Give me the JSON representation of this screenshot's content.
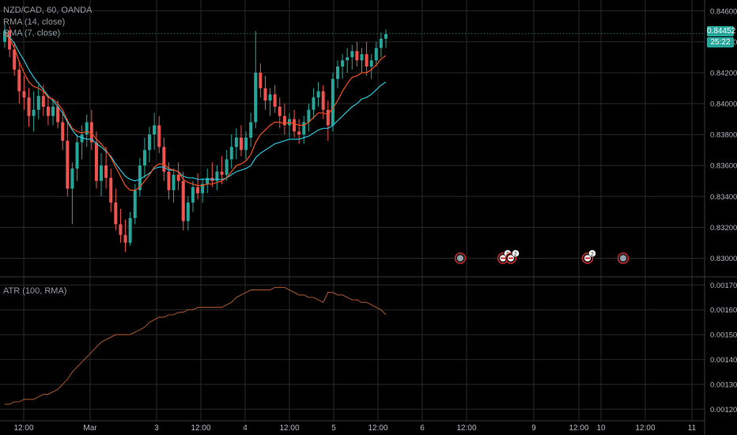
{
  "header": {
    "symbol_line": "NZD/CAD, 60, OANDA",
    "ma_line_1": "RMA (14, close)",
    "ma_line_2": "RMA (7, close)"
  },
  "indicator": {
    "label": "ATR (100, RMA)"
  },
  "price_tags": {
    "last_price": "0.84452",
    "countdown": "25:22"
  },
  "colors": {
    "background": "#000000",
    "grid": "#2a2a2a",
    "up_candle": "#26a69a",
    "down_candle": "#ef5350",
    "ma14": "#26c6da",
    "ma7": "#f4511e",
    "atr": "#a0522d",
    "axis_text": "#b2b5be",
    "last_price_tag": "#26a69a"
  },
  "chart_data": [
    {
      "type": "candlestick",
      "price_axis_ticks": [
        "0.84600",
        "0.84400",
        "0.84200",
        "0.84000",
        "0.83800",
        "0.83600",
        "0.83400",
        "0.83200",
        "0.83000"
      ],
      "ylim": [
        0.829,
        0.8465
      ],
      "time_axis_ticks": [
        "12:00",
        "Mar",
        "3",
        "12:00",
        "4",
        "12:00",
        "5",
        "12:00",
        "6",
        "12:00",
        "9",
        "12:00",
        "10",
        "12:00",
        "11"
      ],
      "last_price": 0.84452,
      "candles_ohlc": [
        [
          0.844,
          0.8452,
          0.8436,
          0.8447
        ],
        [
          0.8447,
          0.845,
          0.843,
          0.8435
        ],
        [
          0.8435,
          0.844,
          0.8418,
          0.8422
        ],
        [
          0.8422,
          0.8428,
          0.84,
          0.8408
        ],
        [
          0.8408,
          0.8418,
          0.8396,
          0.8404
        ],
        [
          0.8404,
          0.841,
          0.8385,
          0.8392
        ],
        [
          0.8392,
          0.8408,
          0.8382,
          0.8396
        ],
        [
          0.8396,
          0.8412,
          0.839,
          0.8405
        ],
        [
          0.8405,
          0.8412,
          0.8392,
          0.8398
        ],
        [
          0.8398,
          0.8404,
          0.8386,
          0.8392
        ],
        [
          0.8392,
          0.8402,
          0.8386,
          0.8398
        ],
        [
          0.8398,
          0.8402,
          0.8384,
          0.8388
        ],
        [
          0.8388,
          0.8395,
          0.837,
          0.8376
        ],
        [
          0.8376,
          0.839,
          0.834,
          0.8345
        ],
        [
          0.8345,
          0.8362,
          0.8322,
          0.8358
        ],
        [
          0.8358,
          0.838,
          0.835,
          0.8375
        ],
        [
          0.8375,
          0.8386,
          0.8364,
          0.838
        ],
        [
          0.838,
          0.8393,
          0.8372,
          0.8388
        ],
        [
          0.8388,
          0.8396,
          0.837,
          0.8375
        ],
        [
          0.8375,
          0.8382,
          0.8345,
          0.835
        ],
        [
          0.835,
          0.8368,
          0.834,
          0.836
        ],
        [
          0.836,
          0.8372,
          0.8345,
          0.8352
        ],
        [
          0.8352,
          0.8358,
          0.833,
          0.8336
        ],
        [
          0.8336,
          0.8345,
          0.8318,
          0.8322
        ],
        [
          0.8322,
          0.8332,
          0.831,
          0.8315
        ],
        [
          0.8315,
          0.8325,
          0.8304,
          0.831
        ],
        [
          0.831,
          0.833,
          0.8308,
          0.8326
        ],
        [
          0.8326,
          0.8348,
          0.8322,
          0.8344
        ],
        [
          0.8344,
          0.8365,
          0.834,
          0.836
        ],
        [
          0.836,
          0.8378,
          0.8352,
          0.837
        ],
        [
          0.837,
          0.8385,
          0.8362,
          0.838
        ],
        [
          0.838,
          0.8394,
          0.837,
          0.8386
        ],
        [
          0.8386,
          0.8392,
          0.8368,
          0.8372
        ],
        [
          0.8372,
          0.8378,
          0.835,
          0.8356
        ],
        [
          0.8356,
          0.8362,
          0.8338,
          0.8344
        ],
        [
          0.8344,
          0.8358,
          0.8336,
          0.8354
        ],
        [
          0.8354,
          0.8362,
          0.8344,
          0.835
        ],
        [
          0.835,
          0.8356,
          0.8318,
          0.8324
        ],
        [
          0.8324,
          0.834,
          0.8318,
          0.8336
        ],
        [
          0.8336,
          0.835,
          0.833,
          0.8346
        ],
        [
          0.8346,
          0.8355,
          0.8338,
          0.8342
        ],
        [
          0.8342,
          0.8352,
          0.8336,
          0.8348
        ],
        [
          0.8348,
          0.8358,
          0.8342,
          0.8352
        ],
        [
          0.8352,
          0.8362,
          0.8346,
          0.835
        ],
        [
          0.835,
          0.836,
          0.8344,
          0.8356
        ],
        [
          0.8356,
          0.8366,
          0.8348,
          0.8354
        ],
        [
          0.8354,
          0.837,
          0.835,
          0.8364
        ],
        [
          0.8364,
          0.838,
          0.8358,
          0.8372
        ],
        [
          0.8372,
          0.8384,
          0.8364,
          0.8378
        ],
        [
          0.8378,
          0.8386,
          0.8366,
          0.837
        ],
        [
          0.837,
          0.8382,
          0.8364,
          0.8378
        ],
        [
          0.8378,
          0.8394,
          0.8372,
          0.8388
        ],
        [
          0.8388,
          0.8447,
          0.8384,
          0.842
        ],
        [
          0.842,
          0.8426,
          0.8404,
          0.841
        ],
        [
          0.841,
          0.8418,
          0.8396,
          0.8402
        ],
        [
          0.8402,
          0.841,
          0.8392,
          0.8406
        ],
        [
          0.8406,
          0.8412,
          0.8394,
          0.8398
        ],
        [
          0.8398,
          0.8404,
          0.8384,
          0.8392
        ],
        [
          0.8392,
          0.84,
          0.838,
          0.8386
        ],
        [
          0.8386,
          0.8394,
          0.8378,
          0.839
        ],
        [
          0.839,
          0.8396,
          0.8378,
          0.8382
        ],
        [
          0.8382,
          0.839,
          0.8374,
          0.838
        ],
        [
          0.838,
          0.8392,
          0.8374,
          0.8388
        ],
        [
          0.8388,
          0.84,
          0.8382,
          0.8396
        ],
        [
          0.8396,
          0.841,
          0.839,
          0.8404
        ],
        [
          0.8404,
          0.8414,
          0.8398,
          0.8408
        ],
        [
          0.8408,
          0.8412,
          0.839,
          0.8396
        ],
        [
          0.8396,
          0.8402,
          0.8376,
          0.8386
        ],
        [
          0.8386,
          0.842,
          0.8382,
          0.8416
        ],
        [
          0.8416,
          0.8428,
          0.841,
          0.8424
        ],
        [
          0.8424,
          0.8432,
          0.8416,
          0.8428
        ],
        [
          0.8428,
          0.8436,
          0.842,
          0.843
        ],
        [
          0.843,
          0.8438,
          0.8422,
          0.8434
        ],
        [
          0.8434,
          0.844,
          0.8424,
          0.8428
        ],
        [
          0.8428,
          0.8436,
          0.842,
          0.8432
        ],
        [
          0.8432,
          0.844,
          0.8418,
          0.8424
        ],
        [
          0.8424,
          0.8432,
          0.8416,
          0.8428
        ],
        [
          0.8428,
          0.844,
          0.8424,
          0.8436
        ],
        [
          0.8436,
          0.8446,
          0.843,
          0.8442
        ],
        [
          0.8442,
          0.8448,
          0.8436,
          0.8445
        ]
      ],
      "ma14_values": [
        0.8445,
        0.8443,
        0.8439,
        0.8433,
        0.8428,
        0.8422,
        0.8417,
        0.8413,
        0.8409,
        0.8405,
        0.8402,
        0.8398,
        0.8394,
        0.8388,
        0.8383,
        0.8379,
        0.8378,
        0.8377,
        0.8377,
        0.8374,
        0.8372,
        0.8369,
        0.8366,
        0.8361,
        0.8357,
        0.8353,
        0.8351,
        0.835,
        0.8351,
        0.8353,
        0.8355,
        0.8358,
        0.8359,
        0.8359,
        0.8357,
        0.8357,
        0.8356,
        0.8353,
        0.8352,
        0.8352,
        0.8351,
        0.8351,
        0.8351,
        0.8351,
        0.8351,
        0.8351,
        0.8352,
        0.8354,
        0.8356,
        0.8357,
        0.8358,
        0.836,
        0.8365,
        0.8368,
        0.837,
        0.8372,
        0.8374,
        0.8375,
        0.8376,
        0.8377,
        0.8377,
        0.8377,
        0.8378,
        0.8379,
        0.8381,
        0.8383,
        0.8384,
        0.8384,
        0.8386,
        0.8389,
        0.8392,
        0.8395,
        0.8398,
        0.84,
        0.8403,
        0.8404,
        0.8406,
        0.8409,
        0.8412,
        0.8414
      ],
      "ma7_values": [
        0.8445,
        0.8442,
        0.8436,
        0.8427,
        0.842,
        0.8414,
        0.8411,
        0.841,
        0.8408,
        0.8404,
        0.8403,
        0.84,
        0.8396,
        0.8389,
        0.8384,
        0.8382,
        0.8381,
        0.8382,
        0.8381,
        0.8377,
        0.8374,
        0.837,
        0.8365,
        0.8359,
        0.8353,
        0.8347,
        0.8344,
        0.8344,
        0.8346,
        0.835,
        0.8354,
        0.8359,
        0.8361,
        0.8361,
        0.8358,
        0.8357,
        0.8356,
        0.8351,
        0.8349,
        0.8348,
        0.8347,
        0.8347,
        0.8348,
        0.8348,
        0.8349,
        0.835,
        0.8352,
        0.8356,
        0.836,
        0.8361,
        0.8363,
        0.8367,
        0.8375,
        0.838,
        0.8383,
        0.8386,
        0.8388,
        0.8388,
        0.8387,
        0.8388,
        0.8387,
        0.8386,
        0.8386,
        0.8388,
        0.8391,
        0.8394,
        0.8394,
        0.8393,
        0.8397,
        0.8402,
        0.8408,
        0.8413,
        0.8417,
        0.8418,
        0.842,
        0.842,
        0.8422,
        0.8425,
        0.8429,
        0.8431
      ]
    },
    {
      "type": "line",
      "name": "ATR (100, RMA)",
      "price_axis_ticks": [
        "0.00170",
        "0.00160",
        "0.00150",
        "0.00140",
        "0.00130",
        "0.00120"
      ],
      "ylim": [
        0.00116,
        0.00172
      ],
      "values": [
        0.00122,
        0.00122,
        0.00123,
        0.00123,
        0.00124,
        0.00124,
        0.00124,
        0.00125,
        0.00126,
        0.00126,
        0.00127,
        0.00128,
        0.0013,
        0.00132,
        0.00135,
        0.00137,
        0.00139,
        0.00141,
        0.00143,
        0.00145,
        0.00147,
        0.00148,
        0.00149,
        0.0015,
        0.0015,
        0.0015,
        0.0015,
        0.00151,
        0.00152,
        0.00153,
        0.00155,
        0.00156,
        0.00157,
        0.00157,
        0.00158,
        0.00158,
        0.00159,
        0.00159,
        0.0016,
        0.0016,
        0.00161,
        0.00161,
        0.00161,
        0.00161,
        0.00161,
        0.00161,
        0.00162,
        0.00163,
        0.00165,
        0.00166,
        0.00167,
        0.00168,
        0.00168,
        0.00168,
        0.00168,
        0.00168,
        0.00169,
        0.00169,
        0.00169,
        0.00168,
        0.00167,
        0.00166,
        0.00166,
        0.00165,
        0.00165,
        0.00164,
        0.00163,
        0.00167,
        0.00167,
        0.00166,
        0.00166,
        0.00165,
        0.00164,
        0.00164,
        0.00163,
        0.00163,
        0.00162,
        0.00161,
        0.0016,
        0.00158
      ]
    }
  ],
  "event_markers": [
    {
      "icon": "globe-icon",
      "count": ""
    },
    {
      "icon": "flag-icon",
      "count": "3"
    },
    {
      "icon": "flag-icon",
      "count": "2"
    },
    {
      "icon": "flag-icon",
      "count": "2"
    },
    {
      "icon": "globe-icon",
      "count": ""
    }
  ]
}
